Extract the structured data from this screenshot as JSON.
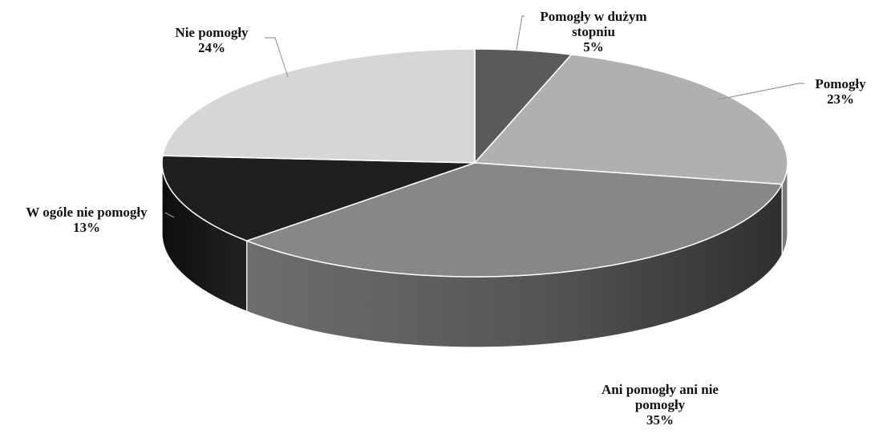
{
  "chart_data": {
    "type": "pie",
    "title": "",
    "style": "3d-exploded-perspective",
    "series": [
      {
        "slices": [
          {
            "label": "Pomogły w dużym stopniu",
            "value": 5,
            "value_label": "5%",
            "color": "#5a5a5a",
            "side_color": "#3a3a3a"
          },
          {
            "label": "Pomogły",
            "value": 23,
            "value_label": "23%",
            "color": "#b0b0b0",
            "side_color": "#7a7a7a"
          },
          {
            "label": "Ani pomogły ani nie pomogły",
            "value": 35,
            "value_label": "35%",
            "color": "#878787",
            "side_color": "#4f4f4f"
          },
          {
            "label": "W ogóle nie pomogły",
            "value": 13,
            "value_label": "13%",
            "color": "#1f1f1f",
            "side_color": "#121212"
          },
          {
            "label": "Nie pomogły",
            "value": 24,
            "value_label": "24%",
            "color": "#d6d6d6",
            "side_color": "#a8a8a8"
          }
        ]
      }
    ],
    "legend": "none",
    "data_labels": "outside-with-leader-lines"
  },
  "label_lines": {
    "slice0": [
      "Pomogły w dużym",
      "stopniu",
      "5%"
    ],
    "slice1": [
      "Pomogły",
      "23%"
    ],
    "slice2": [
      "Ani pomogły ani nie",
      "pomogły",
      "35%"
    ],
    "slice3": [
      "W ogóle nie pomogły",
      "13%"
    ],
    "slice4": [
      "Nie pomogły",
      "24%"
    ]
  }
}
